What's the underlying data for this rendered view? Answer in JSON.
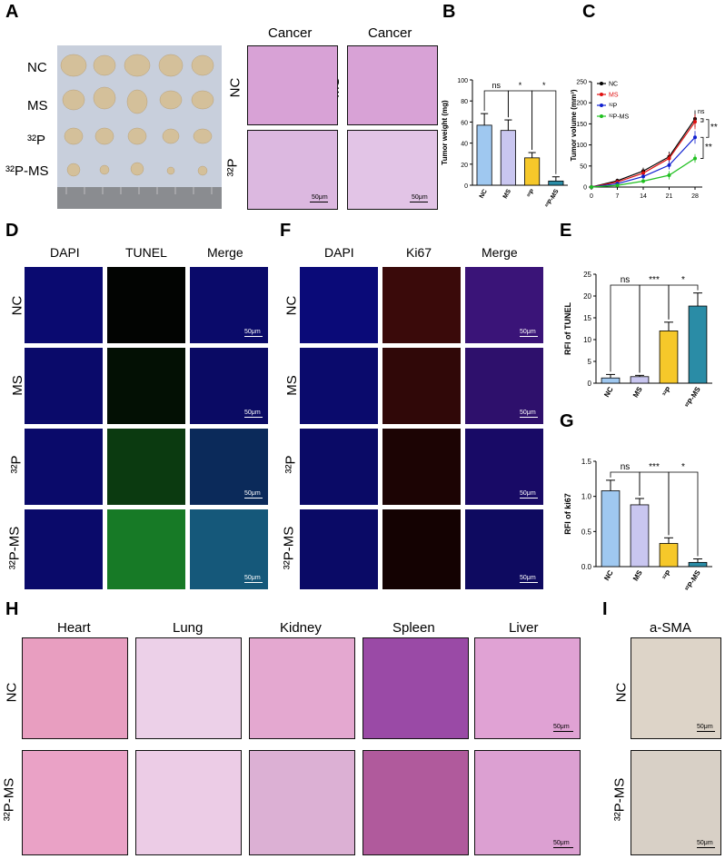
{
  "panels": {
    "A": "A",
    "B": "B",
    "C": "C",
    "D": "D",
    "E": "E",
    "F": "F",
    "G": "G",
    "H": "H",
    "I": "I"
  },
  "panelA": {
    "rows": [
      "NC",
      "MS",
      "³²P",
      "³²P-MS"
    ],
    "col_titles": [
      "Cancer",
      "Cancer"
    ],
    "he_rows": [
      "NC",
      "³²P"
    ],
    "he_rows2": [
      "MS",
      "³²P-MS"
    ],
    "scale": "50μm"
  },
  "panelD": {
    "cols": [
      "DAPI",
      "TUNEL",
      "Merge"
    ],
    "rows": [
      "NC",
      "MS",
      "³²P",
      "³²P-MS"
    ],
    "scale": "50μm"
  },
  "panelF": {
    "cols": [
      "DAPI",
      "Ki67",
      "Merge"
    ],
    "rows": [
      "NC",
      "MS",
      "³²P",
      "³²P-MS"
    ],
    "scale": "50μm"
  },
  "panelH": {
    "cols": [
      "Heart",
      "Lung",
      "Kidney",
      "Spleen",
      "Liver"
    ],
    "rows": [
      "NC",
      "³²P-MS"
    ],
    "scale": "50μm"
  },
  "panelI": {
    "cols": [
      "a-SMA"
    ],
    "rows": [
      "NC",
      "³²P-MS"
    ],
    "scale": "50μm"
  },
  "colors": {
    "NC": "#9fc8f0",
    "MS": "#c9c6f0",
    "32P": "#f6c82a",
    "32P-MS": "#2a8ca6",
    "line_NC": "#000000",
    "line_MS": "#e01010",
    "line_32P": "#1020d0",
    "line_32PMS": "#20c020"
  },
  "chart_data": [
    {
      "id": "B",
      "type": "bar",
      "categories": [
        "NC",
        "MS",
        "³²P",
        "³²P-MS"
      ],
      "values": [
        57,
        52,
        26,
        4
      ],
      "errors": [
        11,
        10,
        5,
        4
      ],
      "ylabel": "Tumor weight (mg)",
      "ylim": [
        0,
        100
      ],
      "yticks": [
        0,
        20,
        40,
        60,
        80,
        100
      ],
      "sig": [
        {
          "from": 0,
          "to": 1,
          "label": "ns"
        },
        {
          "from": 1,
          "to": 2,
          "label": "*"
        },
        {
          "from": 2,
          "to": 3,
          "label": "*"
        }
      ]
    },
    {
      "id": "C",
      "type": "line",
      "x": [
        0,
        7,
        14,
        21,
        28
      ],
      "ylabel": "Tumor volume (mm³)",
      "ylim": [
        0,
        250
      ],
      "yticks": [
        0,
        50,
        100,
        150,
        200,
        250
      ],
      "series": [
        {
          "name": "NC",
          "values": [
            0,
            15,
            38,
            72,
            162
          ],
          "errors": [
            0,
            5,
            8,
            12,
            20
          ]
        },
        {
          "name": "MS",
          "values": [
            0,
            12,
            33,
            68,
            155
          ],
          "errors": [
            0,
            5,
            8,
            12,
            18
          ]
        },
        {
          "name": "³²P",
          "values": [
            0,
            8,
            25,
            52,
            118
          ],
          "errors": [
            0,
            4,
            6,
            10,
            15
          ]
        },
        {
          "name": "³²P-MS",
          "values": [
            0,
            4,
            14,
            28,
            68
          ],
          "errors": [
            0,
            3,
            5,
            10,
            10
          ]
        }
      ],
      "sig": [
        {
          "label": "ns"
        },
        {
          "label": "**"
        },
        {
          "label": "**"
        }
      ]
    },
    {
      "id": "E",
      "type": "bar",
      "categories": [
        "NC",
        "MS",
        "³²P",
        "³²P-MS"
      ],
      "values": [
        1.2,
        1.5,
        12,
        17.7
      ],
      "errors": [
        0.8,
        0.3,
        2,
        3
      ],
      "ylabel": "RFI of TUNEL",
      "ylim": [
        0,
        25
      ],
      "yticks": [
        0,
        5,
        10,
        15,
        20,
        25
      ],
      "sig": [
        {
          "from": 0,
          "to": 1,
          "label": "ns"
        },
        {
          "from": 1,
          "to": 2,
          "label": "***"
        },
        {
          "from": 2,
          "to": 3,
          "label": "*"
        }
      ]
    },
    {
      "id": "G",
      "type": "bar",
      "categories": [
        "NC",
        "MS",
        "³²P",
        "³²P-MS"
      ],
      "values": [
        1.08,
        0.88,
        0.33,
        0.06
      ],
      "errors": [
        0.15,
        0.09,
        0.08,
        0.05
      ],
      "ylabel": "RFI of ki67",
      "ylim": [
        0,
        1.5
      ],
      "yticks": [
        0.0,
        0.5,
        1.0,
        1.5
      ],
      "sig": [
        {
          "from": 0,
          "to": 1,
          "label": "ns"
        },
        {
          "from": 1,
          "to": 2,
          "label": "***"
        },
        {
          "from": 2,
          "to": 3,
          "label": "*"
        }
      ]
    }
  ]
}
